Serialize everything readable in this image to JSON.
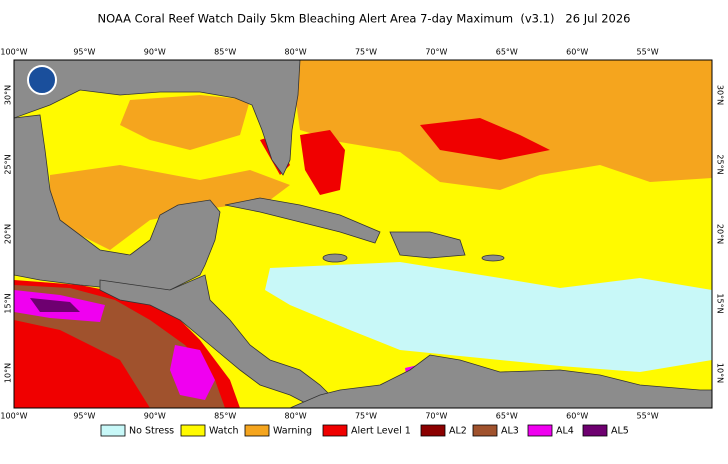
{
  "title": "NOAA Coral Reef Watch Daily 5km Bleaching Alert Area 7-day Maximum  (v3.1)   26 Jul 2026",
  "longitudes": [
    "100°W",
    "95°W",
    "90°W",
    "85°W",
    "80°W",
    "75°W",
    "70°W",
    "65°W",
    "60°W",
    "55°W"
  ],
  "latitudes": [
    "30°N",
    "25°N",
    "20°N",
    "15°N",
    "10°N"
  ],
  "legend": [
    {
      "label": "No Stress",
      "color": "#c8f8f8"
    },
    {
      "label": "Watch",
      "color": "#fffa00"
    },
    {
      "label": "Warning",
      "color": "#f5a51e"
    },
    {
      "label": "Alert Level 1",
      "color": "#f00000"
    },
    {
      "label": "AL2",
      "color": "#8b0000"
    },
    {
      "label": "AL3",
      "color": "#a0522d"
    },
    {
      "label": "AL4",
      "color": "#f000f0"
    },
    {
      "label": "AL5",
      "color": "#6e0070"
    }
  ]
}
